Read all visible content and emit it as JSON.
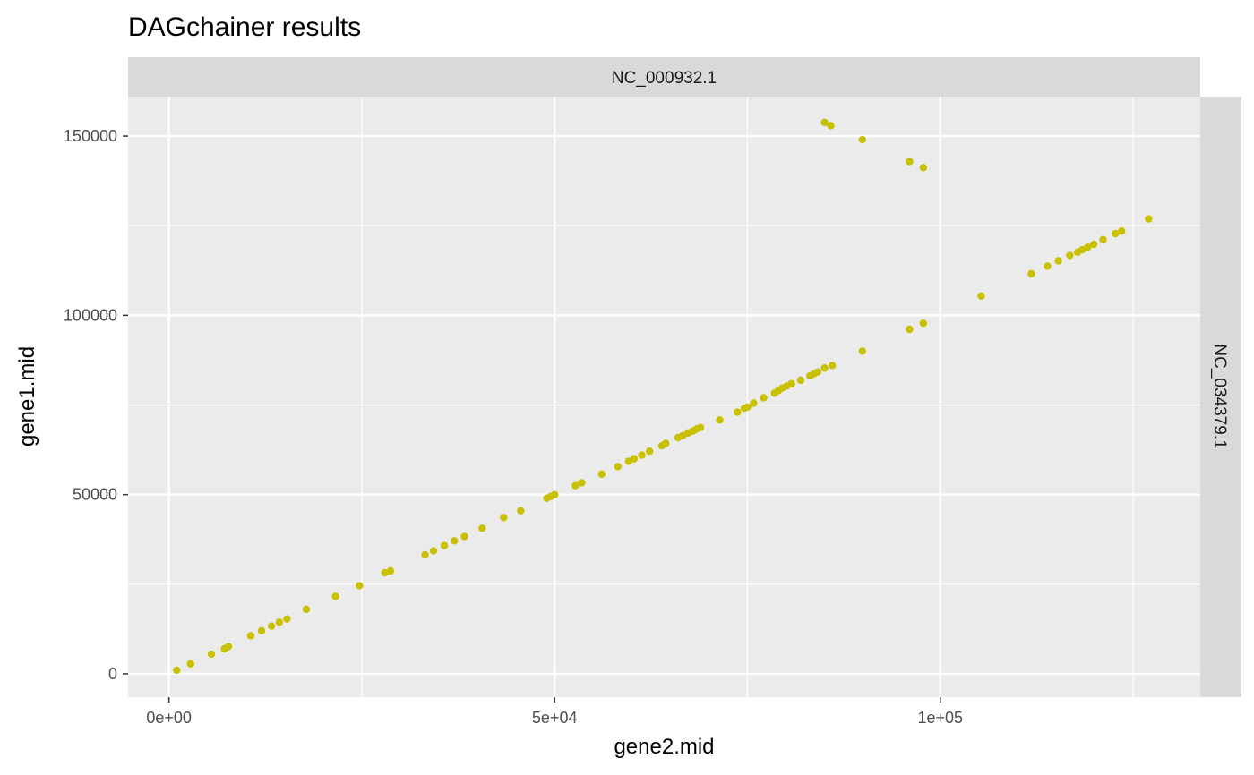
{
  "chart_data": {
    "type": "scatter",
    "title": "DAGchainer results",
    "xlabel": "gene2.mid",
    "ylabel": "gene1.mid",
    "facet_col_label": "NC_000932.1",
    "facet_row_label": "NC_034379.1",
    "xlim": [
      -5300,
      133700
    ],
    "ylim": [
      -6500,
      161000
    ],
    "x_ticks": [
      0,
      50000,
      100000
    ],
    "x_tick_labels": [
      "0e+00",
      "5e+04",
      "1e+05"
    ],
    "y_ticks": [
      0,
      50000,
      100000,
      150000
    ],
    "y_tick_labels": [
      "0",
      "50000",
      "100000",
      "150000"
    ],
    "grid": true,
    "point_color": "#c8c000",
    "panel_background": "#ebebeb",
    "strip_background": "#d9d9d9",
    "series": [
      {
        "points": [
          [
            1000,
            1000
          ],
          [
            2800,
            2800
          ],
          [
            5500,
            5500
          ],
          [
            7200,
            7000
          ],
          [
            7700,
            7600
          ],
          [
            10600,
            10600
          ],
          [
            12000,
            12000
          ],
          [
            13300,
            13300
          ],
          [
            14300,
            14400
          ],
          [
            15300,
            15300
          ],
          [
            17800,
            18000
          ],
          [
            21600,
            21600
          ],
          [
            24700,
            24600
          ],
          [
            28000,
            28200
          ],
          [
            28700,
            28700
          ],
          [
            33200,
            33200
          ],
          [
            34300,
            34300
          ],
          [
            35700,
            35800
          ],
          [
            37000,
            37100
          ],
          [
            38300,
            38300
          ],
          [
            40600,
            40600
          ],
          [
            43400,
            43600
          ],
          [
            45600,
            45500
          ],
          [
            49000,
            49000
          ],
          [
            49500,
            49500
          ],
          [
            50000,
            50000
          ],
          [
            52700,
            52500
          ],
          [
            53500,
            53300
          ],
          [
            56100,
            55700
          ],
          [
            58200,
            57800
          ],
          [
            59600,
            59300
          ],
          [
            60300,
            60000
          ],
          [
            61300,
            61000
          ],
          [
            62300,
            62100
          ],
          [
            63900,
            63600
          ],
          [
            64400,
            64300
          ],
          [
            66000,
            65900
          ],
          [
            66600,
            66400
          ],
          [
            67300,
            67200
          ],
          [
            67900,
            67700
          ],
          [
            68400,
            68300
          ],
          [
            68900,
            68700
          ],
          [
            71400,
            70800
          ],
          [
            73700,
            73000
          ],
          [
            74600,
            74100
          ],
          [
            75000,
            74400
          ],
          [
            75800,
            75500
          ],
          [
            77100,
            77000
          ],
          [
            78500,
            78300
          ],
          [
            79000,
            79000
          ],
          [
            79500,
            79700
          ],
          [
            80100,
            80300
          ],
          [
            80700,
            80900
          ],
          [
            81900,
            81900
          ],
          [
            83100,
            83100
          ],
          [
            83600,
            83700
          ],
          [
            84100,
            84200
          ],
          [
            85000,
            85300
          ],
          [
            86000,
            86000
          ],
          [
            89900,
            90000
          ],
          [
            96000,
            96100
          ],
          [
            97800,
            97800
          ],
          [
            105300,
            105400
          ],
          [
            111800,
            111600
          ],
          [
            113900,
            113700
          ],
          [
            115300,
            115200
          ],
          [
            116800,
            116700
          ],
          [
            117800,
            117600
          ],
          [
            118400,
            118300
          ],
          [
            119100,
            119000
          ],
          [
            119900,
            119800
          ],
          [
            121100,
            121100
          ],
          [
            122700,
            122800
          ],
          [
            123500,
            123500
          ],
          [
            127000,
            126900
          ],
          [
            85000,
            153800
          ],
          [
            85800,
            152900
          ],
          [
            89900,
            149000
          ],
          [
            96000,
            142900
          ],
          [
            97800,
            141200
          ]
        ]
      }
    ]
  }
}
